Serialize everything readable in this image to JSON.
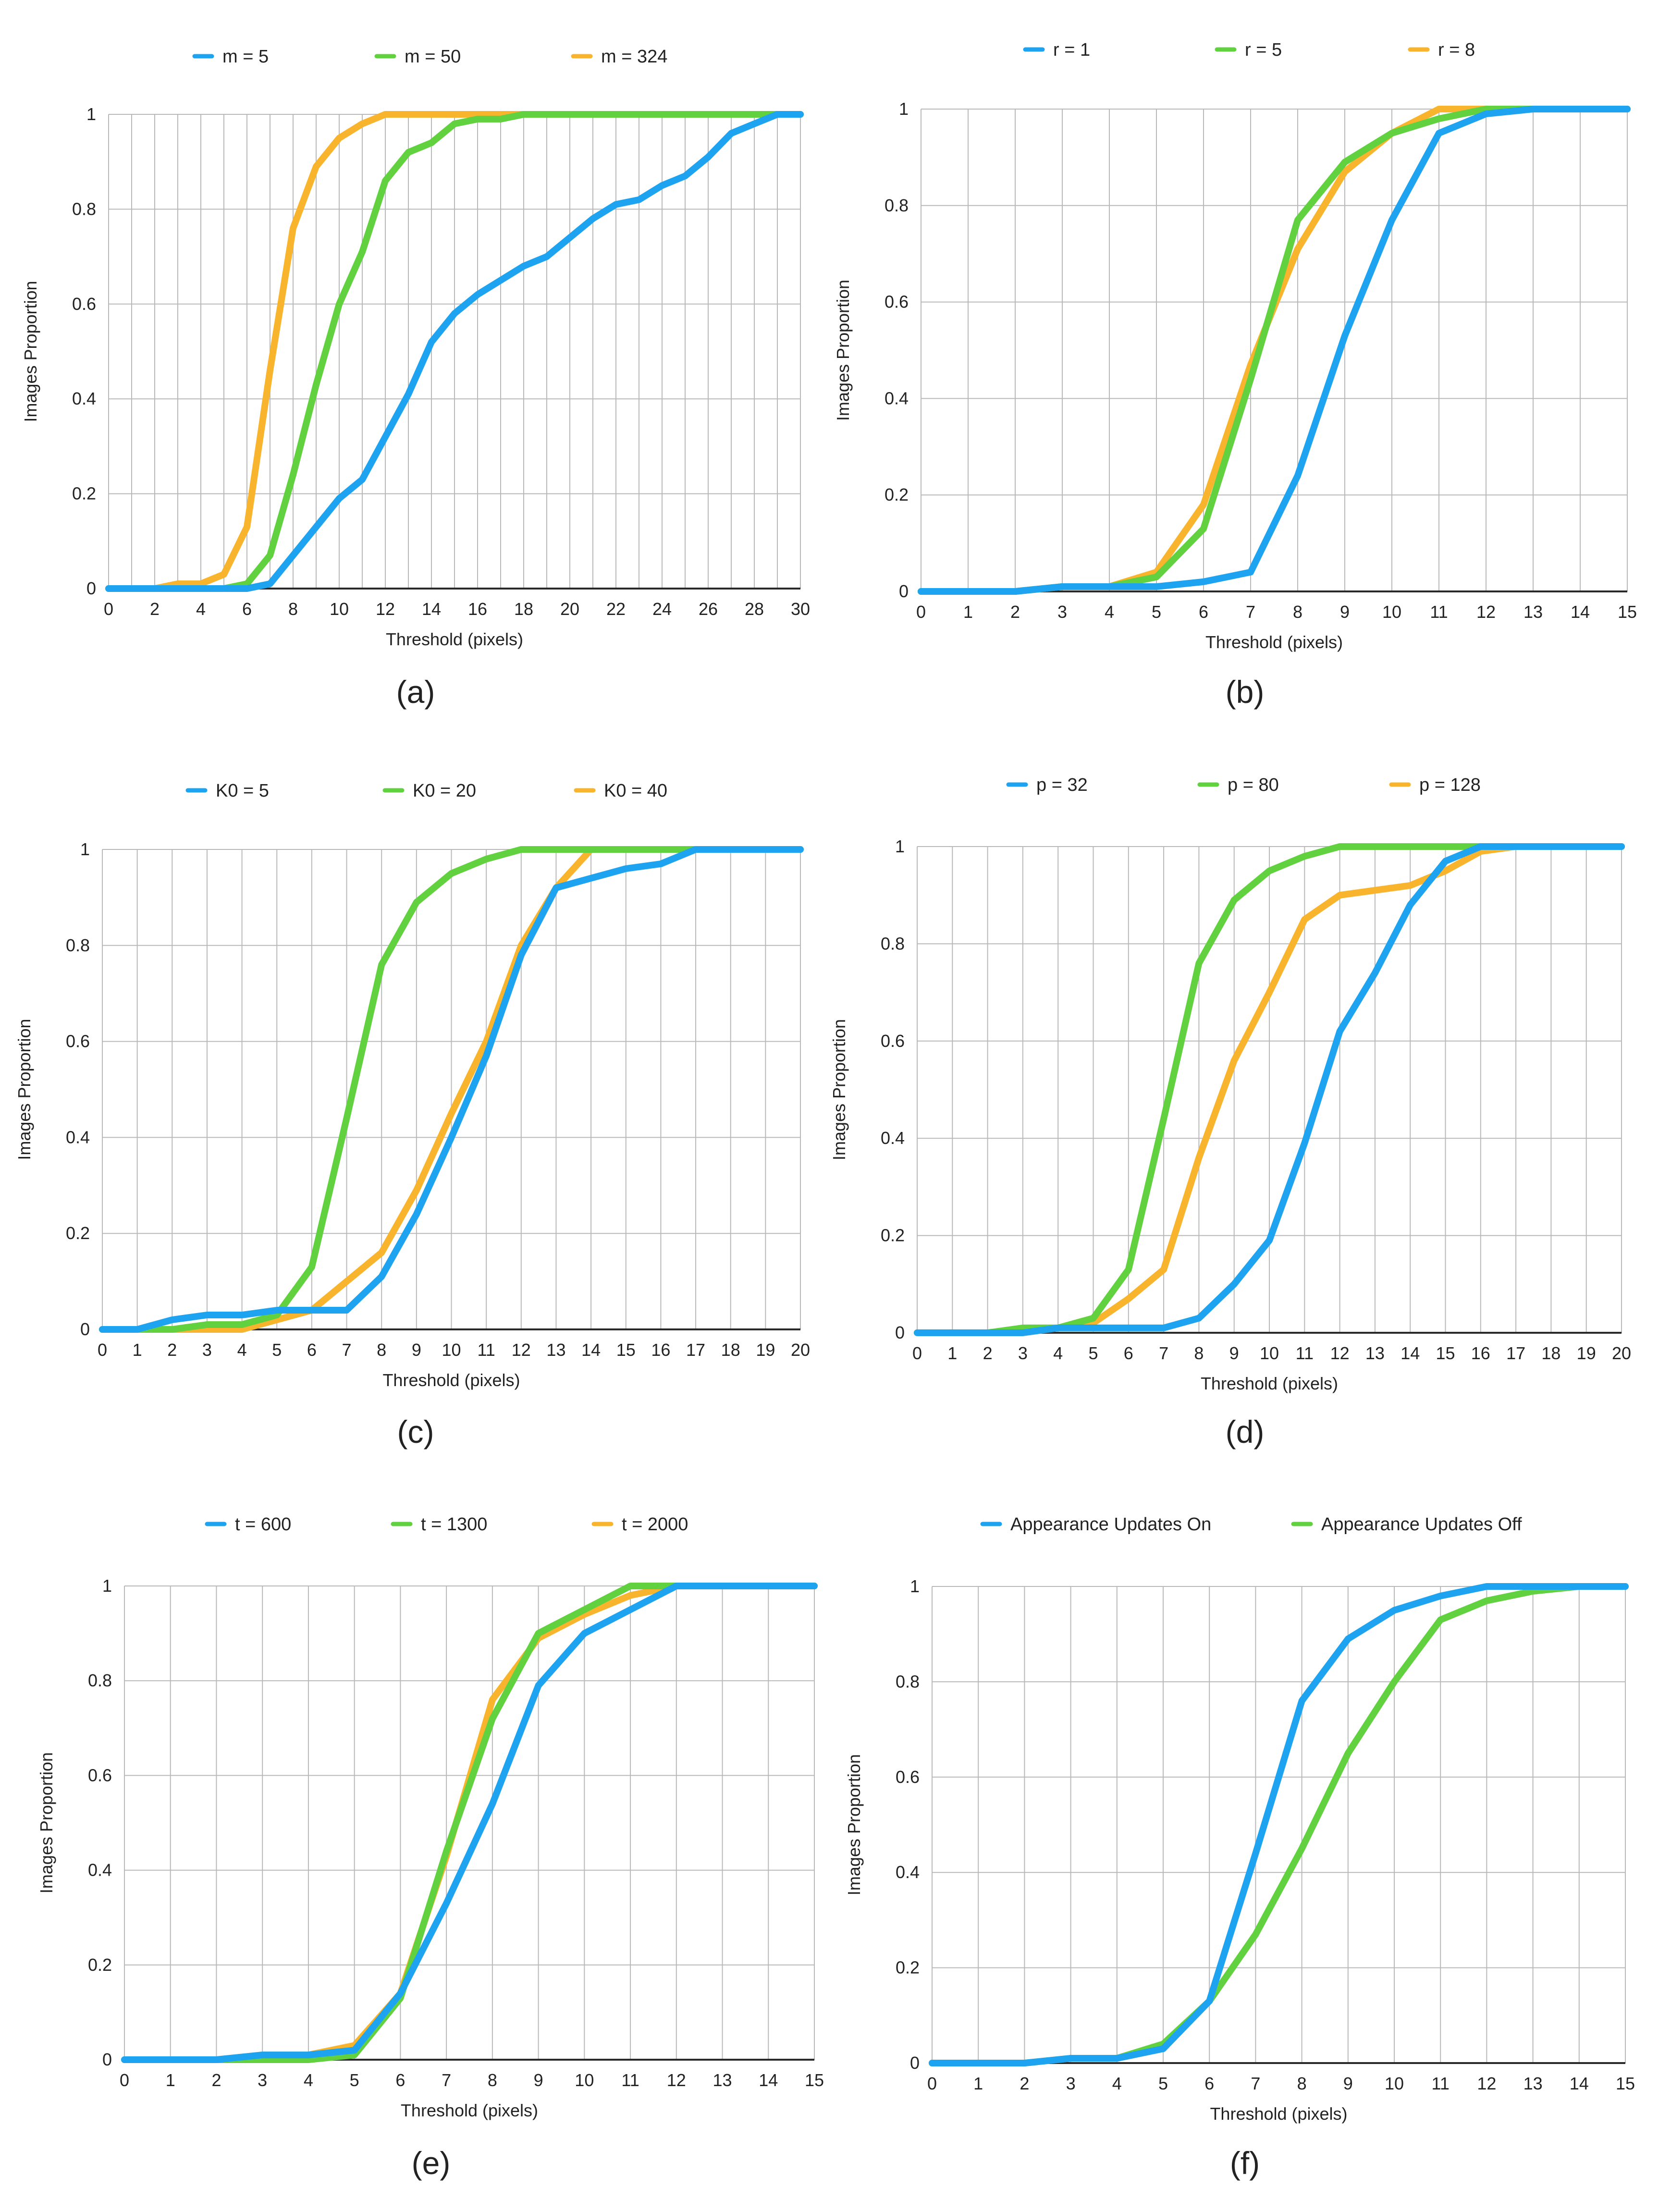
{
  "chart_data": [
    {
      "id": "a",
      "type": "line",
      "caption": "(a)",
      "title": "",
      "xlabel": "Threshold (pixels)",
      "ylabel": "Images Proportion",
      "xlim": [
        0,
        30
      ],
      "ylim": [
        0,
        1
      ],
      "grid": true,
      "legend": "top",
      "xticks": [
        0,
        2,
        4,
        6,
        8,
        10,
        12,
        14,
        16,
        18,
        20,
        22,
        24,
        26,
        28,
        30
      ],
      "yticks": [
        0,
        0.2,
        0.4,
        0.6,
        0.8,
        1
      ],
      "ytick_labels": [
        "0",
        "0.2",
        "0.4",
        "0.6",
        "0.8",
        "1"
      ],
      "x": [
        0,
        1,
        2,
        3,
        4,
        5,
        6,
        7,
        8,
        9,
        10,
        11,
        12,
        13,
        14,
        15,
        16,
        17,
        18,
        19,
        20,
        21,
        22,
        23,
        24,
        25,
        26,
        27,
        28,
        29,
        30
      ],
      "series": [
        {
          "name": "m = 5",
          "color": "#1ea3f0",
          "values": [
            0,
            0,
            0,
            0,
            0,
            0,
            0,
            0.01,
            0.07,
            0.13,
            0.19,
            0.23,
            0.32,
            0.41,
            0.52,
            0.58,
            0.62,
            0.65,
            0.68,
            0.7,
            0.74,
            0.78,
            0.81,
            0.82,
            0.85,
            0.87,
            0.91,
            0.96,
            0.98,
            1,
            1
          ]
        },
        {
          "name": "m = 50",
          "color": "#62d140",
          "values": [
            0,
            0,
            0,
            0,
            0,
            0,
            0.01,
            0.07,
            0.24,
            0.43,
            0.6,
            0.71,
            0.86,
            0.92,
            0.94,
            0.98,
            0.99,
            0.99,
            1,
            1,
            1,
            1,
            1,
            1,
            1,
            1,
            1,
            1,
            1,
            1,
            1
          ]
        },
        {
          "name": "m = 324",
          "color": "#f8b42c",
          "values": [
            0,
            0,
            0,
            0.01,
            0.01,
            0.03,
            0.13,
            0.46,
            0.76,
            0.89,
            0.95,
            0.98,
            1,
            1,
            1,
            1,
            1,
            1,
            1,
            1,
            1,
            1,
            1,
            1,
            1,
            1,
            1,
            1,
            1,
            1,
            1
          ]
        }
      ]
    },
    {
      "id": "b",
      "type": "line",
      "caption": "(b)",
      "title": "",
      "xlabel": "Threshold (pixels)",
      "ylabel": "Images Proportion",
      "xlim": [
        0,
        15
      ],
      "ylim": [
        0,
        1
      ],
      "grid": true,
      "legend": "top",
      "xticks": [
        0,
        1,
        2,
        3,
        4,
        5,
        6,
        7,
        8,
        9,
        10,
        11,
        12,
        13,
        14,
        15
      ],
      "yticks": [
        0,
        0.2,
        0.4,
        0.6,
        0.8,
        1
      ],
      "ytick_labels": [
        "0",
        "0.2",
        "0.4",
        "0.6",
        "0.8",
        "1"
      ],
      "x": [
        0,
        1,
        2,
        3,
        4,
        5,
        6,
        7,
        8,
        9,
        10,
        11,
        12,
        13,
        14,
        15
      ],
      "series": [
        {
          "name": "r = 1",
          "color": "#1ea3f0",
          "values": [
            0,
            0,
            0,
            0.01,
            0.01,
            0.01,
            0.02,
            0.04,
            0.24,
            0.53,
            0.77,
            0.95,
            0.99,
            1,
            1,
            1
          ]
        },
        {
          "name": "r = 5",
          "color": "#62d140",
          "values": [
            0,
            0,
            0,
            0.01,
            0.01,
            0.03,
            0.13,
            0.44,
            0.77,
            0.89,
            0.95,
            0.98,
            1,
            1,
            1,
            1
          ]
        },
        {
          "name": "r = 8",
          "color": "#f8b42c",
          "values": [
            0,
            0,
            0,
            0.01,
            0.01,
            0.04,
            0.18,
            0.47,
            0.71,
            0.87,
            0.95,
            1,
            1,
            1,
            1,
            1
          ]
        }
      ]
    },
    {
      "id": "c",
      "type": "line",
      "caption": "(c)",
      "title": "",
      "xlabel": "Threshold (pixels)",
      "ylabel": "Images Proportion",
      "xlim": [
        0,
        20
      ],
      "ylim": [
        0,
        1
      ],
      "grid": true,
      "legend": "top",
      "xticks": [
        0,
        1,
        2,
        3,
        4,
        5,
        6,
        7,
        8,
        9,
        10,
        11,
        12,
        13,
        14,
        15,
        16,
        17,
        18,
        19,
        20
      ],
      "yticks": [
        0,
        0.2,
        0.4,
        0.6,
        0.8,
        1
      ],
      "ytick_labels": [
        "0",
        "0.2",
        "0.4",
        "0.6",
        "0.8",
        "1"
      ],
      "x": [
        0,
        1,
        2,
        3,
        4,
        5,
        6,
        7,
        8,
        9,
        10,
        11,
        12,
        13,
        14,
        15,
        16,
        17,
        18,
        19,
        20
      ],
      "series": [
        {
          "name": "K0 = 5",
          "color": "#1ea3f0",
          "values": [
            0,
            0,
            0.02,
            0.03,
            0.03,
            0.04,
            0.04,
            0.04,
            0.11,
            0.24,
            0.4,
            0.57,
            0.78,
            0.92,
            0.94,
            0.96,
            0.97,
            1,
            1,
            1,
            1
          ]
        },
        {
          "name": "K0 = 20",
          "color": "#62d140",
          "values": [
            0,
            0,
            0,
            0.01,
            0.01,
            0.03,
            0.13,
            0.44,
            0.76,
            0.89,
            0.95,
            0.98,
            1,
            1,
            1,
            1,
            1,
            1,
            1,
            1,
            1
          ]
        },
        {
          "name": "K0 = 40",
          "color": "#f8b42c",
          "values": [
            0,
            0,
            0,
            0,
            0,
            0.02,
            0.04,
            0.1,
            0.16,
            0.29,
            0.45,
            0.6,
            0.8,
            0.92,
            1,
            1,
            1,
            1,
            1,
            1,
            1
          ]
        }
      ]
    },
    {
      "id": "d",
      "type": "line",
      "caption": "(d)",
      "title": "",
      "xlabel": "Threshold (pixels)",
      "ylabel": "Images Proportion",
      "xlim": [
        0,
        20
      ],
      "ylim": [
        0,
        1
      ],
      "grid": true,
      "legend": "top",
      "xticks": [
        0,
        1,
        2,
        3,
        4,
        5,
        6,
        7,
        8,
        9,
        10,
        11,
        12,
        13,
        14,
        15,
        16,
        17,
        18,
        19,
        20
      ],
      "yticks": [
        0,
        0.2,
        0.4,
        0.6,
        0.8,
        1
      ],
      "ytick_labels": [
        "0",
        "0.2",
        "0.4",
        "0.6",
        "0.8",
        "1"
      ],
      "x": [
        0,
        1,
        2,
        3,
        4,
        5,
        6,
        7,
        8,
        9,
        10,
        11,
        12,
        13,
        14,
        15,
        16,
        17,
        18,
        19,
        20
      ],
      "series": [
        {
          "name": "p = 32",
          "color": "#1ea3f0",
          "values": [
            0,
            0,
            0,
            0,
            0.01,
            0.01,
            0.01,
            0.01,
            0.03,
            0.1,
            0.19,
            0.39,
            0.62,
            0.74,
            0.88,
            0.97,
            1,
            1,
            1,
            1,
            1
          ]
        },
        {
          "name": "p = 80",
          "color": "#62d140",
          "values": [
            0,
            0,
            0,
            0.01,
            0.01,
            0.03,
            0.13,
            0.44,
            0.76,
            0.89,
            0.95,
            0.98,
            1,
            1,
            1,
            1,
            1,
            1,
            1,
            1,
            1
          ]
        },
        {
          "name": "p = 128",
          "color": "#f8b42c",
          "values": [
            0,
            0,
            0,
            0,
            0.01,
            0.02,
            0.07,
            0.13,
            0.36,
            0.56,
            0.7,
            0.85,
            0.9,
            0.91,
            0.92,
            0.95,
            0.99,
            1,
            1,
            1,
            1
          ]
        }
      ]
    },
    {
      "id": "e",
      "type": "line",
      "caption": "(e)",
      "title": "",
      "xlabel": "Threshold (pixels)",
      "ylabel": "Images Proportion",
      "xlim": [
        0,
        15
      ],
      "ylim": [
        0,
        1
      ],
      "grid": true,
      "legend": "top",
      "xticks": [
        0,
        1,
        2,
        3,
        4,
        5,
        6,
        7,
        8,
        9,
        10,
        11,
        12,
        13,
        14,
        15
      ],
      "yticks": [
        0,
        0.2,
        0.4,
        0.6,
        0.8,
        1
      ],
      "ytick_labels": [
        "0",
        "0.2",
        "0.4",
        "0.6",
        "0.8",
        "1"
      ],
      "x": [
        0,
        1,
        2,
        3,
        4,
        5,
        6,
        7,
        8,
        9,
        10,
        11,
        12,
        13,
        14,
        15
      ],
      "series": [
        {
          "name": "t = 600",
          "color": "#1ea3f0",
          "values": [
            0,
            0,
            0,
            0.01,
            0.01,
            0.02,
            0.14,
            0.33,
            0.54,
            0.79,
            0.9,
            0.95,
            1,
            1,
            1,
            1
          ]
        },
        {
          "name": "t = 1300",
          "color": "#62d140",
          "values": [
            0,
            0,
            0,
            0,
            0,
            0.01,
            0.13,
            0.44,
            0.72,
            0.9,
            0.95,
            1,
            1,
            1,
            1,
            1
          ]
        },
        {
          "name": "t = 2000",
          "color": "#f8b42c",
          "values": [
            0,
            0,
            0,
            0.01,
            0.01,
            0.03,
            0.14,
            0.43,
            0.76,
            0.89,
            0.94,
            0.98,
            1,
            1,
            1,
            1
          ]
        }
      ]
    },
    {
      "id": "f",
      "type": "line",
      "caption": "(f)",
      "title": "",
      "xlabel": "Threshold (pixels)",
      "ylabel": "Images Proportion",
      "xlim": [
        0,
        15
      ],
      "ylim": [
        0,
        1
      ],
      "grid": true,
      "legend": "top",
      "xticks": [
        0,
        1,
        2,
        3,
        4,
        5,
        6,
        7,
        8,
        9,
        10,
        11,
        12,
        13,
        14,
        15
      ],
      "yticks": [
        0,
        0.2,
        0.4,
        0.6,
        0.8,
        1
      ],
      "ytick_labels": [
        "0",
        "0.2",
        "0.4",
        "0.6",
        "0.8",
        "1"
      ],
      "x": [
        0,
        1,
        2,
        3,
        4,
        5,
        6,
        7,
        8,
        9,
        10,
        11,
        12,
        13,
        14,
        15
      ],
      "series": [
        {
          "name": "Appearance Updates On",
          "color": "#1ea3f0",
          "values": [
            0,
            0,
            0,
            0.01,
            0.01,
            0.03,
            0.13,
            0.44,
            0.76,
            0.89,
            0.95,
            0.98,
            1,
            1,
            1,
            1
          ]
        },
        {
          "name": "Appearance Updates Off",
          "color": "#62d140",
          "values": [
            0,
            0,
            0,
            0.01,
            0.01,
            0.04,
            0.13,
            0.27,
            0.45,
            0.65,
            0.8,
            0.93,
            0.97,
            0.99,
            1,
            1
          ]
        }
      ]
    }
  ]
}
